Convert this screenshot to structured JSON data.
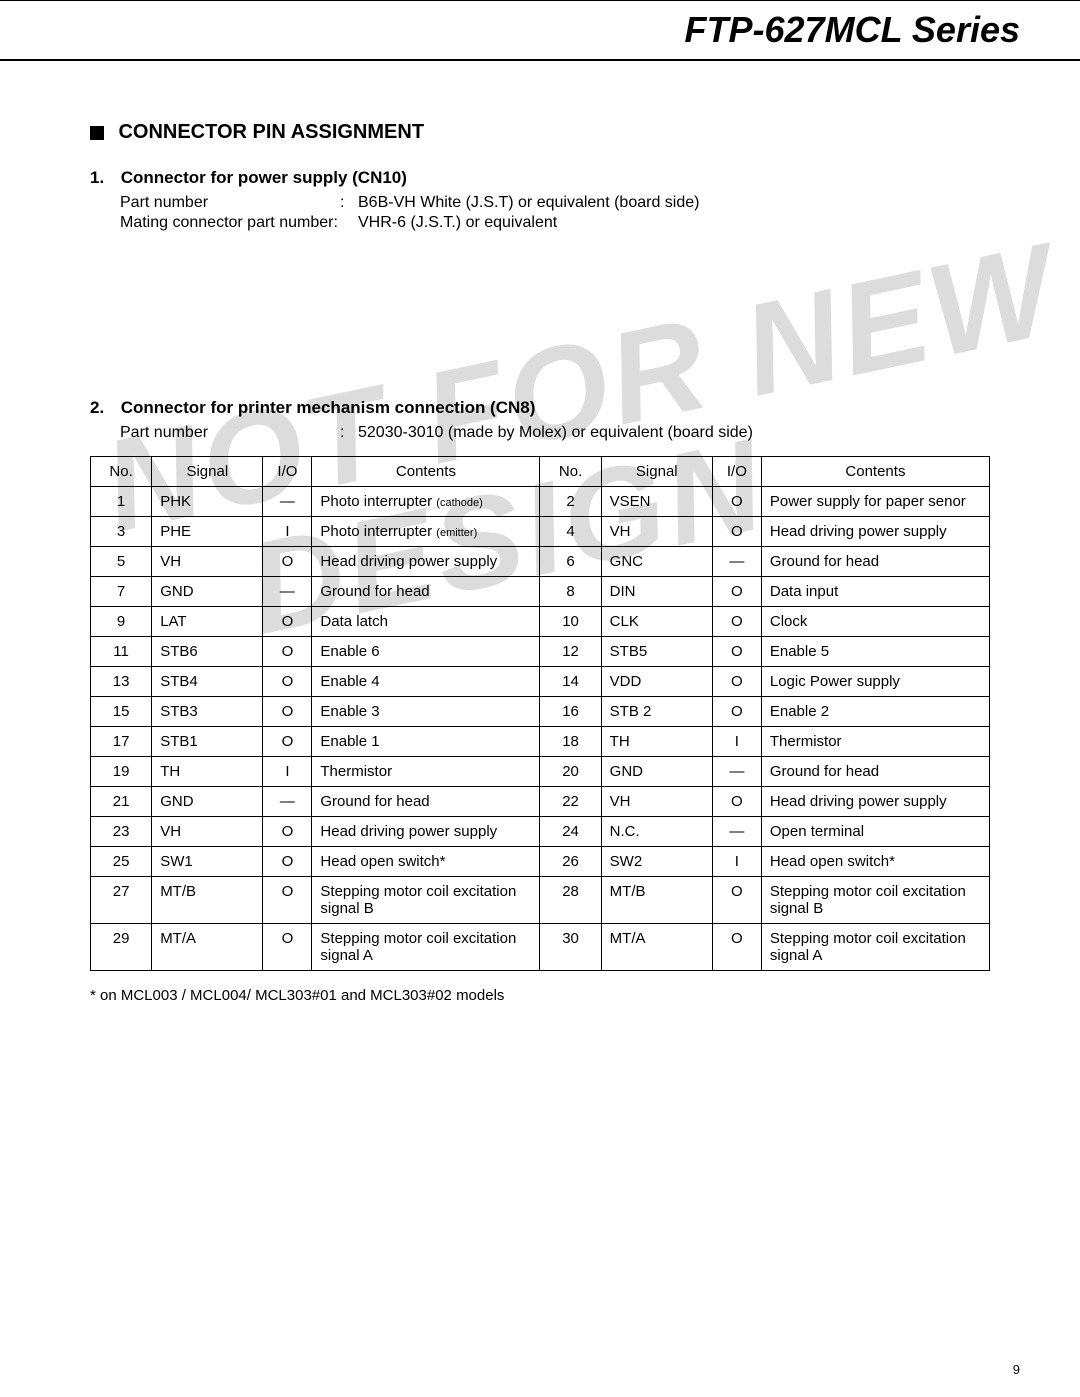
{
  "page": {
    "title": "FTP-627MCL Series",
    "page_number": "9",
    "watermark_line1": "NOT FOR NEW",
    "watermark_line2": "DESIGN"
  },
  "section": {
    "title": "CONNECTOR PIN ASSIGNMENT"
  },
  "sub1": {
    "num": "1.",
    "title": "Connector for power supply (CN10)",
    "rows": [
      {
        "label": "Part number",
        "colon": ":",
        "value": "B6B-VH White (J.S.T) or equivalent (board side)"
      },
      {
        "label": "Mating connector part number:",
        "colon": "",
        "value": "VHR-6 (J.S.T.) or equivalent"
      }
    ]
  },
  "sub2": {
    "num": "2.",
    "title": "Connector for printer mechanism connection (CN8)",
    "rows": [
      {
        "label": "Part number",
        "colon": ":",
        "value": "52030-3010 (made by Molex) or equivalent (board side)"
      }
    ]
  },
  "table": {
    "headers": [
      "No.",
      "Signal",
      "I/O",
      "Contents",
      "No.",
      "Signal",
      "I/O",
      "Contents"
    ],
    "rows": [
      [
        "1",
        "PHK",
        "—",
        "Photo interrupter (cathode)",
        "2",
        "VSEN",
        "O",
        "Power supply for paper senor"
      ],
      [
        "3",
        "PHE",
        "I",
        "Photo interrupter (emitter)",
        "4",
        "VH",
        "O",
        "Head driving power supply"
      ],
      [
        "5",
        "VH",
        "O",
        "Head driving power supply",
        "6",
        "GNC",
        "—",
        "Ground for head"
      ],
      [
        "7",
        "GND",
        "—",
        "Ground for head",
        "8",
        "DIN",
        "O",
        "Data input"
      ],
      [
        "9",
        "LAT",
        "O",
        "Data latch",
        "10",
        "CLK",
        "O",
        "Clock"
      ],
      [
        "11",
        "STB6",
        "O",
        "Enable 6",
        "12",
        "STB5",
        "O",
        "Enable 5"
      ],
      [
        "13",
        "STB4",
        "O",
        "Enable 4",
        "14",
        "VDD",
        "O",
        "Logic Power supply"
      ],
      [
        "15",
        "STB3",
        "O",
        "Enable 3",
        "16",
        "STB 2",
        "O",
        "Enable 2"
      ],
      [
        "17",
        "STB1",
        "O",
        "Enable 1",
        "18",
        "TH",
        "I",
        "Thermistor"
      ],
      [
        "19",
        "TH",
        "I",
        "Thermistor",
        "20",
        "GND",
        "—",
        "Ground for head"
      ],
      [
        "21",
        "GND",
        "—",
        "Ground for head",
        "22",
        "VH",
        "O",
        "Head driving power supply"
      ],
      [
        "23",
        "VH",
        "O",
        "Head driving power supply",
        "24",
        "N.C.",
        "—",
        "Open terminal"
      ],
      [
        "25",
        "SW1",
        "O",
        "Head open switch*",
        "26",
        "SW2",
        "I",
        "Head open switch*"
      ],
      [
        "27",
        "MT/B",
        "O",
        "Stepping motor coil excitation signal B",
        "28",
        "MT/B",
        "O",
        "Stepping motor coil excitation signal B"
      ],
      [
        "29",
        "MT/A",
        "O",
        "Stepping motor coil excitation signal A",
        "30",
        "MT/A",
        "O",
        "Stepping motor coil excitation signal A"
      ]
    ]
  },
  "footnote": "* on MCL003 / MCL004/ MCL303#01 and MCL303#02 models"
}
